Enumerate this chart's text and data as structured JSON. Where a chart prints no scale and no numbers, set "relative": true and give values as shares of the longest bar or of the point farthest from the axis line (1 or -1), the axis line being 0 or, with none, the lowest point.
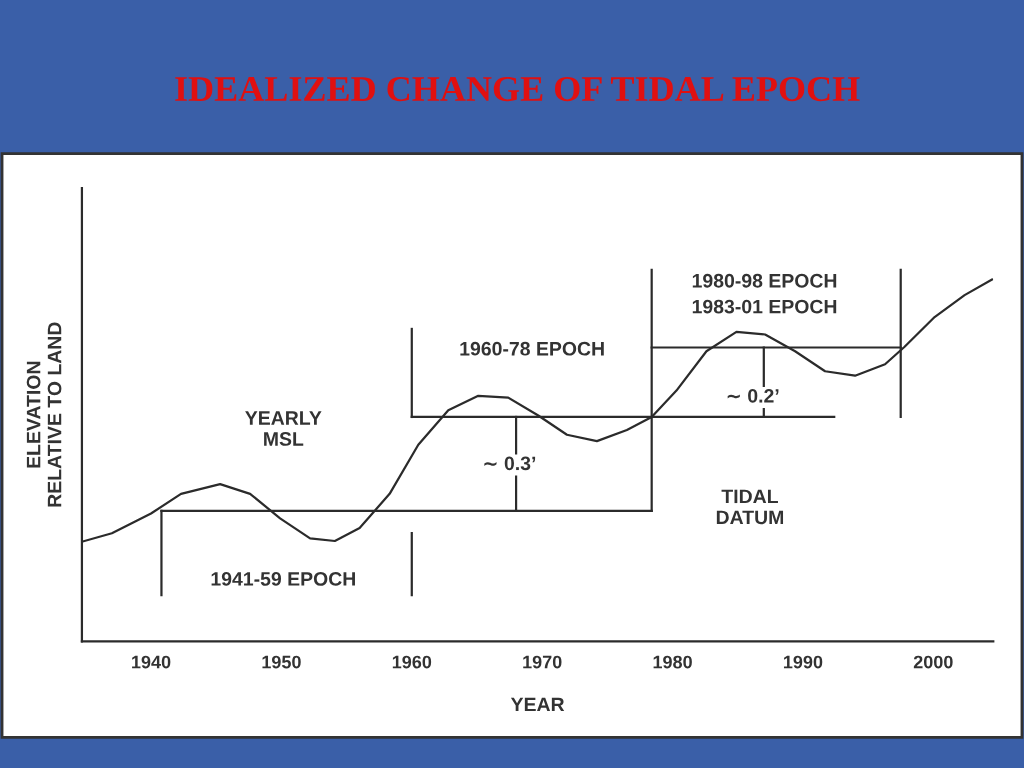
{
  "chart_data": {
    "type": "line",
    "title": "IDEALIZED CHANGE OF TIDAL EPOCH",
    "xlabel": "YEAR",
    "ylabel": "ELEVATION\nRELATIVE TO LAND",
    "relative": true,
    "tick_labels": "x",
    "grid": false,
    "marker": "none",
    "line_style": "solid",
    "xlim": [
      1934.7,
      2004.6
    ],
    "xticks": [
      1940,
      1950,
      1960,
      1970,
      1980,
      1990,
      2000
    ],
    "series": [
      {
        "color": "#2b2b2b",
        "x": [
          1934.7,
          1937.0,
          1940.0,
          1942.3,
          1945.3,
          1947.6,
          1949.9,
          1952.2,
          1954.1,
          1956.0,
          1958.3,
          1960.5,
          1962.8,
          1965.1,
          1967.4,
          1969.7,
          1971.9,
          1974.2,
          1976.5,
          1978.4,
          1980.3,
          1982.6,
          1984.9,
          1987.1,
          1989.4,
          1991.7,
          1994.0,
          1996.3,
          1997.8,
          2000.1,
          2002.4,
          2004.5
        ],
        "values": [
          0.268,
          0.291,
          0.344,
          0.397,
          0.423,
          0.397,
          0.331,
          0.277,
          0.27,
          0.305,
          0.397,
          0.529,
          0.622,
          0.661,
          0.656,
          0.608,
          0.556,
          0.539,
          0.569,
          0.604,
          0.675,
          0.781,
          0.833,
          0.826,
          0.781,
          0.727,
          0.715,
          0.746,
          0.793,
          0.873,
          0.932,
          0.974
        ]
      },
      {
        "color": "#2b2b2b",
        "x": [
          1940.8,
          1978.4
        ],
        "values": [
          0.351,
          0.351
        ]
      },
      {
        "color": "#2b2b2b",
        "x": [
          1960.0,
          1992.4
        ],
        "values": [
          0.604,
          0.604
        ]
      },
      {
        "color": "#2b2b2b",
        "x": [
          1978.4,
          1997.5
        ],
        "values": [
          0.791,
          0.791
        ]
      },
      {
        "color": "#2b2b2b",
        "x": [
          1940.8,
          1940.8
        ],
        "values": [
          0.124,
          0.351
        ]
      },
      {
        "color": "#2b2b2b",
        "x": [
          1960.0,
          1960.0
        ],
        "values": [
          0.604,
          0.841
        ]
      },
      {
        "color": "#2b2b2b",
        "x": [
          1960.0,
          1960.0
        ],
        "values": [
          0.124,
          0.291
        ]
      },
      {
        "color": "#2b2b2b",
        "x": [
          1978.4,
          1978.4
        ],
        "values": [
          0.351,
          1.0
        ]
      },
      {
        "color": "#2b2b2b",
        "x": [
          1997.5,
          1997.5
        ],
        "values": [
          0.604,
          1.0
        ]
      },
      {
        "color": "#2b2b2b",
        "x": [
          1968.0,
          1968.0
        ],
        "values": [
          0.351,
          0.604
        ]
      },
      {
        "color": "#2b2b2b",
        "x": [
          1987.0,
          1987.0
        ],
        "values": [
          0.604,
          0.791
        ]
      }
    ],
    "annotations": [
      "1941-59 EPOCH",
      "1960-78 EPOCH",
      "1980-98 EPOCH",
      "1983-01 EPOCH",
      "YEARLY\nMSL",
      "∼ 0.3’",
      "∼ 0.2’",
      "TIDAL\nDATUM"
    ]
  }
}
